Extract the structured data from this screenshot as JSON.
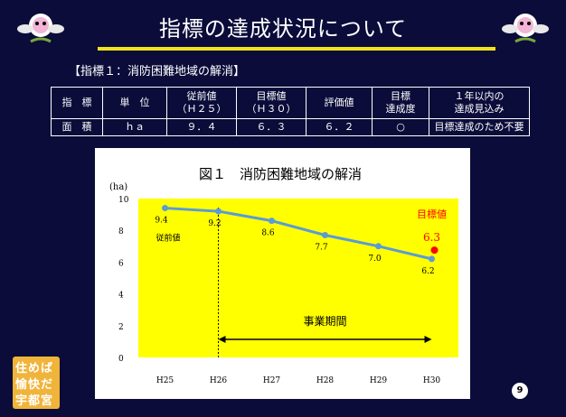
{
  "slide": {
    "title": "指標の達成状況について",
    "subtitle": "【指標１：消防困難地域の解消】",
    "page_number": "9"
  },
  "table": {
    "headers": [
      "指　標",
      "単　位",
      "従前値\n（Ｈ２５）",
      "目標値\n（Ｈ３０）",
      "評価値",
      "目標\n達成度",
      "１年以内の\n達成見込み"
    ],
    "row": [
      "面　積",
      "ｈａ",
      "９．４",
      "６．３",
      "６．２",
      "○",
      "目標達成のため不要"
    ]
  },
  "badge": {
    "lines": [
      "住めば",
      "愉快だ",
      "宇都宮"
    ]
  },
  "colors": {
    "background": "#0b0c3a",
    "accent_line": "#f2e21c",
    "plot_area": "#ffff00",
    "series": "#5b9bd5",
    "target": "#ff0000",
    "badge": "#f0b43a"
  },
  "chart_data": {
    "type": "line",
    "title": "図１　消防困難地域の解消",
    "ylabel": "(ha)",
    "categories": [
      "H25",
      "H26",
      "H27",
      "H28",
      "H29",
      "H30"
    ],
    "series": [
      {
        "values": [
          9.4,
          9.2,
          8.6,
          7.7,
          7.0,
          6.2
        ]
      }
    ],
    "data_labels": [
      "9.4",
      "9.2",
      "8.6",
      "7.7",
      "7.0",
      "6.2"
    ],
    "ylim": [
      0,
      10
    ],
    "yticks": [
      "0",
      "2",
      "4",
      "6",
      "8",
      "10"
    ],
    "target": {
      "label": "目標値",
      "value_label": "6.3",
      "value": 6.3
    },
    "baseline_label": "従前値",
    "period_label": "事業期間",
    "period_start": "H26",
    "period_end": "H30",
    "grid": false
  }
}
